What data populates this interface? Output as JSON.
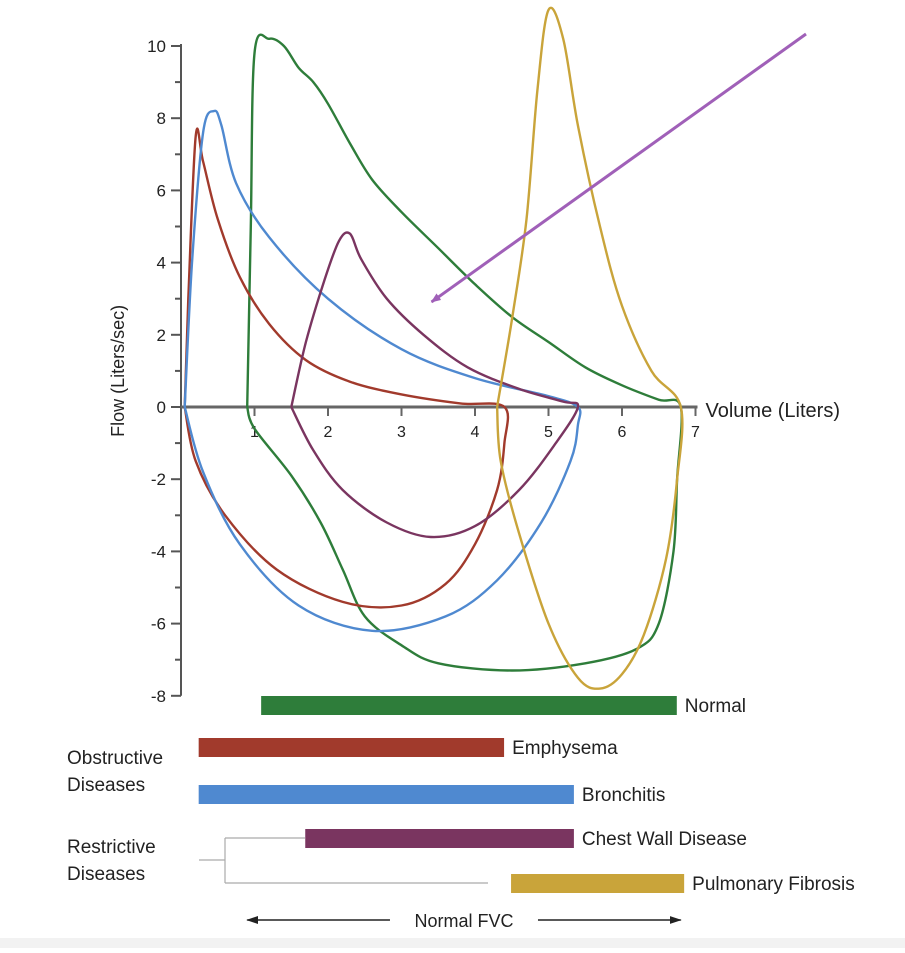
{
  "chart_data": {
    "type": "line",
    "title": "",
    "xlabel": "Volume (Liters)",
    "ylabel": "Flow (Liters/sec)",
    "xlim": [
      0,
      7
    ],
    "ylim": [
      -8,
      10
    ],
    "x_ticks": [
      "1",
      "2",
      "3",
      "4",
      "5",
      "6",
      "7"
    ],
    "y_ticks": [
      "10",
      "8",
      "6",
      "4",
      "2",
      "0",
      "-2",
      "-4",
      "-6",
      "-8"
    ],
    "grid": false,
    "series": [
      {
        "name": "Normal",
        "color": "#2e7d3a",
        "points": [
          [
            0.9,
            0
          ],
          [
            0.95,
            5
          ],
          [
            1.0,
            9.8
          ],
          [
            1.2,
            10.2
          ],
          [
            1.4,
            10.0
          ],
          [
            1.6,
            9.4
          ],
          [
            1.8,
            9.0
          ],
          [
            2.0,
            8.4
          ],
          [
            2.3,
            7.3
          ],
          [
            2.6,
            6.3
          ],
          [
            3.0,
            5.4
          ],
          [
            3.5,
            4.4
          ],
          [
            4.0,
            3.4
          ],
          [
            4.5,
            2.5
          ],
          [
            5.0,
            1.8
          ],
          [
            5.5,
            1.1
          ],
          [
            6.0,
            0.6
          ],
          [
            6.5,
            0.2
          ],
          [
            6.8,
            0
          ],
          [
            6.75,
            -2
          ],
          [
            6.7,
            -4
          ],
          [
            6.5,
            -6
          ],
          [
            6.2,
            -6.7
          ],
          [
            5.5,
            -7.1
          ],
          [
            4.5,
            -7.3
          ],
          [
            3.5,
            -7.1
          ],
          [
            3.0,
            -6.6
          ],
          [
            2.5,
            -5.8
          ],
          [
            2.2,
            -4.5
          ],
          [
            1.9,
            -3.2
          ],
          [
            1.5,
            -1.9
          ],
          [
            1.0,
            -0.6
          ],
          [
            0.9,
            0
          ]
        ]
      },
      {
        "name": "Emphysema",
        "color": "#a13a2c",
        "points": [
          [
            0.05,
            0
          ],
          [
            0.1,
            3.0
          ],
          [
            0.2,
            7.5
          ],
          [
            0.3,
            6.8
          ],
          [
            0.5,
            5.2
          ],
          [
            0.8,
            3.6
          ],
          [
            1.2,
            2.3
          ],
          [
            1.7,
            1.3
          ],
          [
            2.3,
            0.7
          ],
          [
            3.0,
            0.35
          ],
          [
            3.8,
            0.1
          ],
          [
            4.4,
            0
          ],
          [
            4.4,
            -1.0
          ],
          [
            4.3,
            -2.3
          ],
          [
            4.0,
            -3.8
          ],
          [
            3.6,
            -4.9
          ],
          [
            3.0,
            -5.5
          ],
          [
            2.2,
            -5.4
          ],
          [
            1.3,
            -4.5
          ],
          [
            0.6,
            -3.0
          ],
          [
            0.2,
            -1.5
          ],
          [
            0.05,
            0
          ]
        ]
      },
      {
        "name": "Bronchitis",
        "color": "#4f89d0",
        "points": [
          [
            0.05,
            0
          ],
          [
            0.15,
            4.0
          ],
          [
            0.3,
            7.6
          ],
          [
            0.45,
            8.2
          ],
          [
            0.55,
            7.8
          ],
          [
            0.75,
            6.2
          ],
          [
            1.2,
            4.7
          ],
          [
            2.0,
            3.0
          ],
          [
            3.0,
            1.6
          ],
          [
            4.0,
            0.8
          ],
          [
            5.0,
            0.3
          ],
          [
            5.4,
            0
          ],
          [
            5.4,
            -0.5
          ],
          [
            5.3,
            -1.5
          ],
          [
            4.9,
            -3.2
          ],
          [
            4.3,
            -4.8
          ],
          [
            3.6,
            -5.8
          ],
          [
            2.6,
            -6.2
          ],
          [
            1.6,
            -5.5
          ],
          [
            0.8,
            -3.8
          ],
          [
            0.3,
            -1.8
          ],
          [
            0.05,
            0
          ]
        ]
      },
      {
        "name": "Chest Wall Disease",
        "color": "#7a3560",
        "points": [
          [
            1.5,
            0
          ],
          [
            1.7,
            1.8
          ],
          [
            1.95,
            3.5
          ],
          [
            2.15,
            4.6
          ],
          [
            2.3,
            4.8
          ],
          [
            2.45,
            4.1
          ],
          [
            2.8,
            3.0
          ],
          [
            3.3,
            2.0
          ],
          [
            3.9,
            1.1
          ],
          [
            4.6,
            0.5
          ],
          [
            5.2,
            0.15
          ],
          [
            5.4,
            0
          ],
          [
            5.1,
            -1.0
          ],
          [
            4.6,
            -2.3
          ],
          [
            4.0,
            -3.3
          ],
          [
            3.4,
            -3.6
          ],
          [
            2.8,
            -3.2
          ],
          [
            2.2,
            -2.3
          ],
          [
            1.8,
            -1.2
          ],
          [
            1.5,
            0
          ]
        ]
      },
      {
        "name": "Pulmonary Fibrosis",
        "color": "#c9a43a",
        "points": [
          [
            4.3,
            0
          ],
          [
            4.5,
            2.4
          ],
          [
            4.7,
            5.2
          ],
          [
            4.85,
            8.8
          ],
          [
            5.0,
            11.0
          ],
          [
            5.2,
            10.2
          ],
          [
            5.4,
            7.8
          ],
          [
            5.7,
            5.0
          ],
          [
            6.0,
            2.8
          ],
          [
            6.4,
            1.0
          ],
          [
            6.8,
            0
          ],
          [
            6.75,
            -2.0
          ],
          [
            6.6,
            -4.2
          ],
          [
            6.3,
            -6.3
          ],
          [
            6.0,
            -7.4
          ],
          [
            5.7,
            -7.8
          ],
          [
            5.4,
            -7.5
          ],
          [
            5.0,
            -6.0
          ],
          [
            4.6,
            -3.5
          ],
          [
            4.35,
            -1.5
          ],
          [
            4.3,
            0
          ]
        ]
      }
    ],
    "fvc_bars": [
      {
        "label": "Normal",
        "color": "#2e7d3a",
        "start": 0.9,
        "end": 6.8
      },
      {
        "label": "Emphysema",
        "color": "#a13a2c",
        "start": 0.05,
        "end": 4.45
      },
      {
        "label": "Bronchitis",
        "color": "#4f89d0",
        "start": 0.05,
        "end": 5.4
      },
      {
        "label": "Chest Wall Disease",
        "color": "#7a3560",
        "start": 1.5,
        "end": 5.4
      },
      {
        "label": "Pulmonary Fibrosis",
        "color": "#c9a43a",
        "start": 4.3,
        "end": 6.9
      }
    ],
    "groups": [
      {
        "line1": "Obstructive",
        "line2": "Diseases"
      },
      {
        "line1": "Restrictive",
        "line2": "Diseases"
      }
    ],
    "range_label": "Normal FVC",
    "arrow": {
      "color": "#a060b8",
      "target": [
        3.3,
        2.8
      ]
    }
  }
}
